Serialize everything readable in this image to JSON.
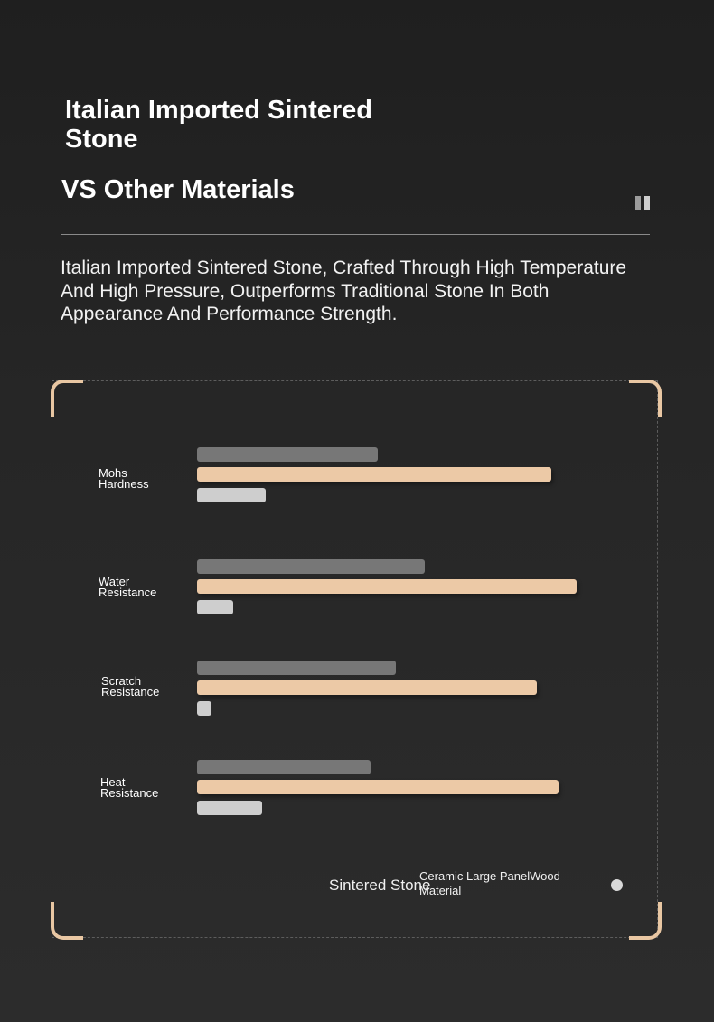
{
  "header": {
    "title": "Italian Imported Sintered Stone",
    "subtitle": "VS Other Materials",
    "description": "Italian Imported Sintered Stone, Crafted Through High Temperature And High Pressure, Outperforms Traditional Stone In Both Appearance And Performance Strength."
  },
  "icons": {
    "pause": "pause-icon"
  },
  "colors": {
    "wood": "#777777",
    "sintered": "#ecc9a6",
    "ceramic": "#cecece",
    "frame_accent": "#e9c7a3"
  },
  "legend": {
    "sintered_label": "Sintered Stone",
    "ceramic_wood_label": "Ceramic Large PanelWood Material"
  },
  "chart_data": {
    "type": "bar",
    "orientation": "horizontal",
    "categories": [
      "Mohs\nHardness",
      "Water\nResistance",
      "Scratch\nResistance",
      "Heat\nResistance"
    ],
    "series": [
      {
        "key": "wood",
        "values": [
          50,
          63,
          55,
          48
        ]
      },
      {
        "key": "sintered",
        "values": [
          98,
          105,
          94,
          100
        ]
      },
      {
        "key": "ceramic",
        "values": [
          19,
          10,
          4,
          18
        ]
      }
    ],
    "xlim": [
      0,
      120
    ],
    "grid": false
  }
}
